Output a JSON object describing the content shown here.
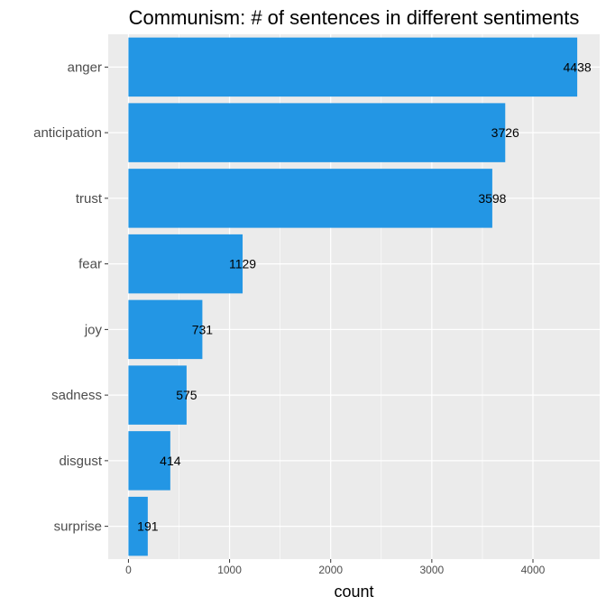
{
  "chart_data": {
    "type": "bar",
    "orientation": "horizontal",
    "title": "Communism: # of sentences in different sentiments",
    "xlabel": "count",
    "ylabel": "",
    "categories": [
      "anger",
      "anticipation",
      "trust",
      "fear",
      "joy",
      "sadness",
      "disgust",
      "surprise"
    ],
    "values": [
      4438,
      3726,
      3598,
      1129,
      731,
      575,
      414,
      191
    ],
    "data_labels": [
      "4438",
      "3726",
      "3598",
      "1129",
      "731",
      "575",
      "414",
      "191"
    ],
    "xlim": [
      -200,
      4660
    ],
    "xticks": [
      0,
      1000,
      2000,
      3000,
      4000
    ],
    "xtick_labels": [
      "0",
      "1000",
      "2000",
      "3000",
      "4000"
    ],
    "grid": true,
    "bar_color": "#2396E4",
    "panel_color": "#EBEBEB",
    "grid_color": "#FFFFFF"
  }
}
